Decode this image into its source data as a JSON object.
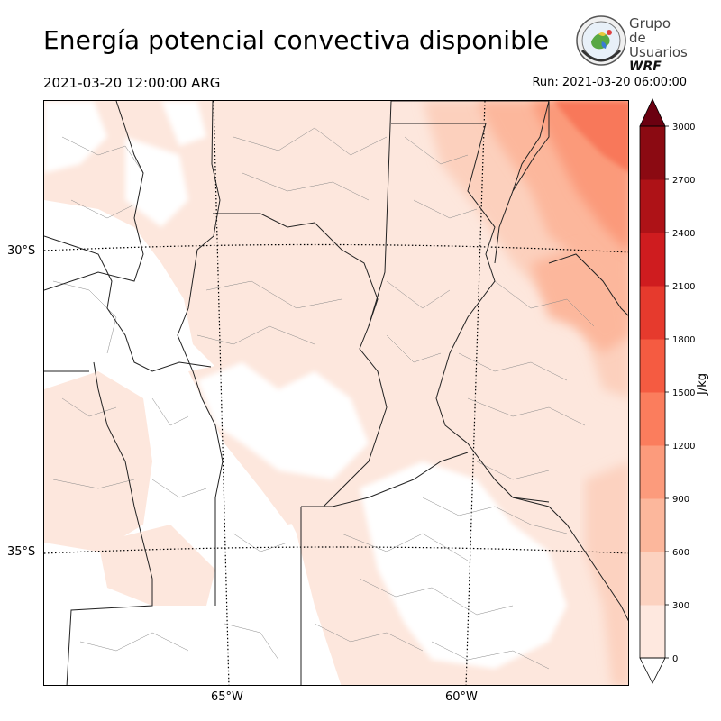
{
  "header": {
    "title": "Energía potencial convectiva disponible",
    "valid_time": "2021-03-20 12:00:00 ARG",
    "run_label": "Run: 2021-03-20 06:00:00"
  },
  "logo": {
    "line1": "Grupo de",
    "line2": "Usuarios",
    "line3": "WRF"
  },
  "map": {
    "variable": "CAPE",
    "lat_labels": [
      "30°S",
      "35°S"
    ],
    "lon_labels": [
      "65°W",
      "60°W"
    ]
  },
  "colorbar": {
    "unit": "J/kg",
    "ticks": [
      "0",
      "300",
      "600",
      "900",
      "1200",
      "1500",
      "1800",
      "2100",
      "2400",
      "2700",
      "3000"
    ],
    "colors": [
      "#fee8df",
      "#fcd2c0",
      "#fcb79c",
      "#fc9b7c",
      "#fb7d5d",
      "#f55b41",
      "#e63a2d",
      "#cf1c1f",
      "#ae1217",
      "#8b0a12",
      "#6b0010"
    ],
    "extend": "both"
  }
}
